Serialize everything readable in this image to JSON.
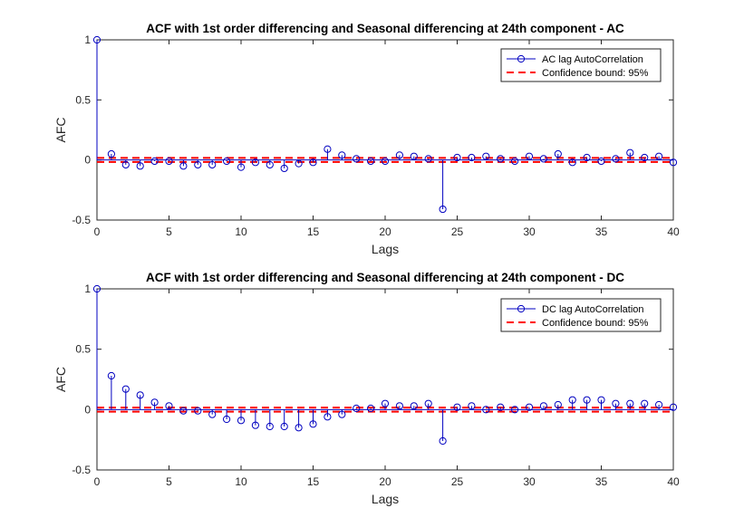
{
  "chart_data": [
    {
      "type": "stem",
      "title": "ACF with 1st order differencing and Seasonal differencing at 24th component - AC",
      "xlabel": "Lags",
      "ylabel": "AFC",
      "xlim": [
        0,
        40
      ],
      "ylim": [
        -0.5,
        1
      ],
      "xticks": [
        0,
        5,
        10,
        15,
        20,
        25,
        30,
        35,
        40
      ],
      "yticks": [
        -0.5,
        0,
        0.5,
        1
      ],
      "grid": false,
      "legend_position": "top-right",
      "series": [
        {
          "name": "AC lag AutoCorrelation",
          "color": "#0000c0",
          "marker": "circle",
          "x": [
            0,
            1,
            2,
            3,
            4,
            5,
            6,
            7,
            8,
            9,
            10,
            11,
            12,
            13,
            14,
            15,
            16,
            17,
            18,
            19,
            20,
            21,
            22,
            23,
            24,
            25,
            26,
            27,
            28,
            29,
            30,
            31,
            32,
            33,
            34,
            35,
            36,
            37,
            38,
            39,
            40
          ],
          "values": [
            1,
            0.05,
            -0.04,
            -0.05,
            -0.01,
            -0.01,
            -0.05,
            -0.04,
            -0.04,
            -0.01,
            -0.06,
            -0.02,
            -0.04,
            -0.07,
            -0.03,
            -0.02,
            0.09,
            0.04,
            0.01,
            -0.01,
            -0.01,
            0.04,
            0.03,
            0.01,
            -0.41,
            0.02,
            0.02,
            0.03,
            0.01,
            -0.01,
            0.03,
            0.01,
            0.05,
            -0.02,
            0.02,
            -0.01,
            0.01,
            0.06,
            0.02,
            0.03,
            -0.02
          ]
        },
        {
          "name": "Confidence bound: 95%",
          "color": "#ff0000",
          "style": "dashed",
          "bounds": [
            -0.017,
            0.017
          ]
        }
      ]
    },
    {
      "type": "stem",
      "title": "ACF with 1st order differencing and Seasonal differencing at 24th component - DC",
      "xlabel": "Lags",
      "ylabel": "AFC",
      "xlim": [
        0,
        40
      ],
      "ylim": [
        -0.5,
        1
      ],
      "xticks": [
        0,
        5,
        10,
        15,
        20,
        25,
        30,
        35,
        40
      ],
      "yticks": [
        -0.5,
        0,
        0.5,
        1
      ],
      "grid": false,
      "legend_position": "top-right",
      "series": [
        {
          "name": "DC lag AutoCorrelation",
          "color": "#0000c0",
          "marker": "circle",
          "x": [
            0,
            1,
            2,
            3,
            4,
            5,
            6,
            7,
            8,
            9,
            10,
            11,
            12,
            13,
            14,
            15,
            16,
            17,
            18,
            19,
            20,
            21,
            22,
            23,
            24,
            25,
            26,
            27,
            28,
            29,
            30,
            31,
            32,
            33,
            34,
            35,
            36,
            37,
            38,
            39,
            40
          ],
          "values": [
            1,
            0.28,
            0.17,
            0.12,
            0.06,
            0.03,
            -0.01,
            -0.01,
            -0.04,
            -0.08,
            -0.09,
            -0.13,
            -0.14,
            -0.14,
            -0.15,
            -0.12,
            -0.06,
            -0.04,
            0.01,
            0.01,
            0.05,
            0.03,
            0.03,
            0.05,
            -0.26,
            0.02,
            0.03,
            0.0,
            0.02,
            0.0,
            0.02,
            0.03,
            0.04,
            0.08,
            0.08,
            0.08,
            0.05,
            0.05,
            0.05,
            0.04,
            0.02
          ]
        },
        {
          "name": "Confidence bound: 95%",
          "color": "#ff0000",
          "style": "dashed",
          "bounds": [
            -0.017,
            0.017
          ]
        }
      ]
    }
  ]
}
